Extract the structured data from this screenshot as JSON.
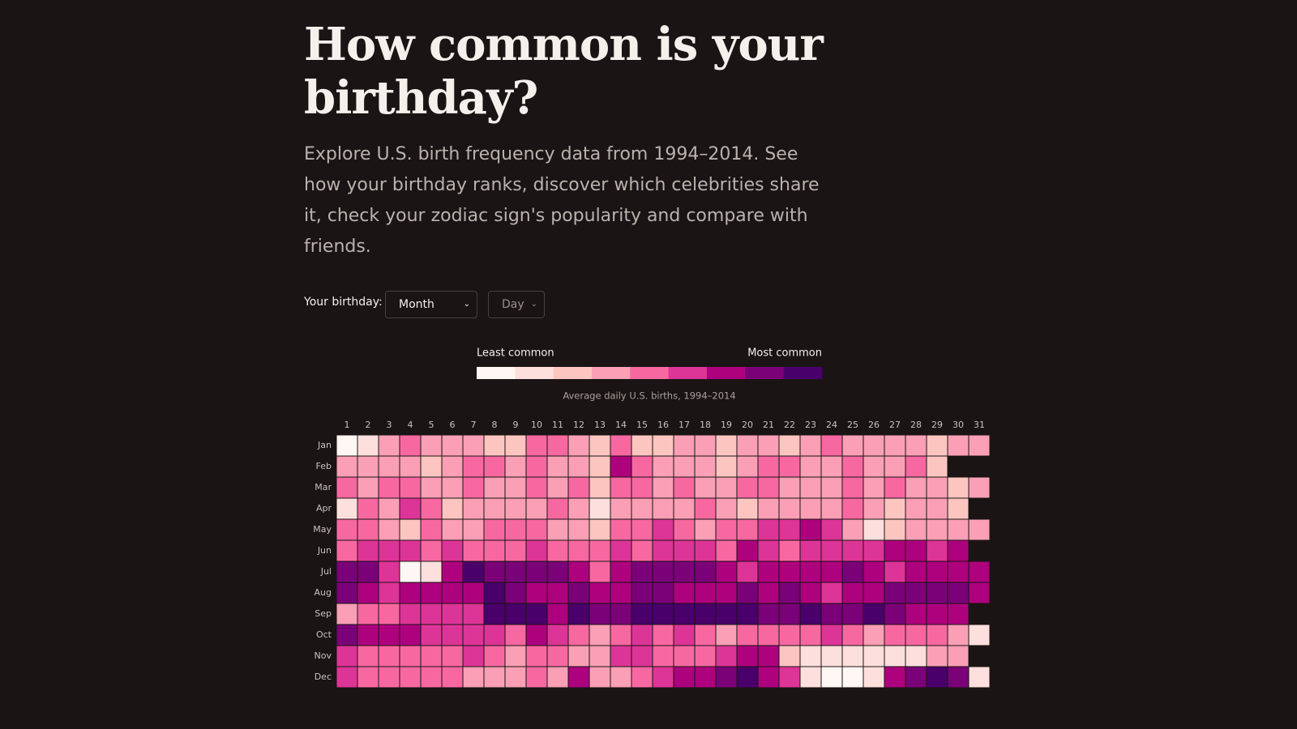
{
  "header": {
    "title": "How common is your birthday?",
    "description": "Explore U.S. birth frequency data from 1994–2014. See how your birthday ranks, discover which celebrities share it, check your zodiac sign's popularity and compare with friends."
  },
  "controls": {
    "label": "Your birthday:",
    "month": "Month",
    "day": "Day"
  },
  "legend": {
    "low": "Least common",
    "high": "Most common",
    "caption": "Average daily U.S. births, 1994–2014"
  },
  "chart_data": {
    "type": "heatmap",
    "x": [
      "1",
      "2",
      "3",
      "4",
      "5",
      "6",
      "7",
      "8",
      "9",
      "10",
      "11",
      "12",
      "13",
      "14",
      "15",
      "16",
      "17",
      "18",
      "19",
      "20",
      "21",
      "22",
      "23",
      "24",
      "25",
      "26",
      "27",
      "28",
      "29",
      "30",
      "31"
    ],
    "colors": [
      "#fff7f3",
      "#fde0dd",
      "#fcc5c0",
      "#fa9fb5",
      "#f768a1",
      "#dd3497",
      "#ae017e",
      "#7a0177",
      "#49006a"
    ],
    "series": [
      {
        "name": "Jan",
        "values": [
          0,
          1,
          3,
          4,
          3,
          3,
          3,
          2,
          2,
          4,
          4,
          3,
          2,
          4,
          2,
          2,
          3,
          3,
          2,
          3,
          3,
          2,
          3,
          4,
          3,
          3,
          3,
          3,
          2,
          3,
          3
        ]
      },
      {
        "name": "Feb",
        "values": [
          3,
          3,
          3,
          3,
          2,
          3,
          4,
          4,
          3,
          4,
          3,
          3,
          2,
          6,
          4,
          3,
          3,
          3,
          2,
          3,
          4,
          4,
          3,
          3,
          4,
          3,
          3,
          4,
          2,
          null,
          null
        ]
      },
      {
        "name": "Mar",
        "values": [
          4,
          3,
          4,
          4,
          3,
          3,
          4,
          3,
          3,
          4,
          3,
          4,
          2,
          4,
          4,
          3,
          4,
          3,
          3,
          4,
          4,
          3,
          3,
          3,
          4,
          3,
          4,
          3,
          3,
          2,
          3
        ]
      },
      {
        "name": "Apr",
        "values": [
          1,
          4,
          3,
          5,
          4,
          2,
          3,
          3,
          3,
          3,
          4,
          3,
          1,
          3,
          3,
          3,
          3,
          4,
          3,
          2,
          3,
          3,
          3,
          3,
          4,
          3,
          2,
          3,
          3,
          2,
          null
        ]
      },
      {
        "name": "May",
        "values": [
          4,
          4,
          3,
          2,
          4,
          3,
          3,
          4,
          4,
          4,
          3,
          3,
          2,
          4,
          4,
          5,
          4,
          3,
          4,
          4,
          5,
          5,
          6,
          5,
          3,
          1,
          2,
          3,
          3,
          3,
          3
        ]
      },
      {
        "name": "Jun",
        "values": [
          4,
          5,
          5,
          5,
          4,
          5,
          4,
          4,
          4,
          5,
          4,
          4,
          4,
          5,
          4,
          5,
          5,
          5,
          4,
          6,
          5,
          4,
          5,
          5,
          5,
          5,
          6,
          6,
          5,
          6,
          null
        ]
      },
      {
        "name": "Jul",
        "values": [
          7,
          7,
          5,
          0,
          1,
          6,
          8,
          7,
          7,
          7,
          7,
          6,
          4,
          6,
          7,
          7,
          7,
          7,
          6,
          5,
          6,
          6,
          6,
          6,
          7,
          6,
          5,
          6,
          6,
          6,
          6
        ]
      },
      {
        "name": "Aug",
        "values": [
          7,
          6,
          5,
          6,
          6,
          6,
          6,
          8,
          7,
          6,
          6,
          7,
          6,
          6,
          7,
          7,
          6,
          6,
          6,
          7,
          6,
          7,
          6,
          5,
          6,
          6,
          7,
          7,
          7,
          7,
          6
        ]
      },
      {
        "name": "Sep",
        "values": [
          3,
          4,
          4,
          5,
          5,
          5,
          5,
          8,
          8,
          8,
          6,
          8,
          7,
          7,
          8,
          8,
          8,
          8,
          8,
          8,
          7,
          7,
          8,
          7,
          7,
          8,
          7,
          6,
          6,
          6,
          null
        ]
      },
      {
        "name": "Oct",
        "values": [
          7,
          6,
          6,
          6,
          5,
          5,
          5,
          5,
          4,
          6,
          5,
          4,
          3,
          4,
          5,
          4,
          5,
          4,
          3,
          4,
          4,
          4,
          4,
          5,
          4,
          3,
          4,
          4,
          4,
          3,
          1
        ]
      },
      {
        "name": "Nov",
        "values": [
          5,
          4,
          4,
          4,
          4,
          4,
          5,
          4,
          3,
          4,
          4,
          3,
          3,
          5,
          5,
          4,
          4,
          4,
          5,
          6,
          6,
          2,
          1,
          1,
          1,
          1,
          1,
          1,
          3,
          3,
          null
        ]
      },
      {
        "name": "Dec",
        "values": [
          5,
          4,
          4,
          4,
          4,
          4,
          3,
          3,
          3,
          4,
          3,
          6,
          3,
          3,
          4,
          5,
          6,
          6,
          7,
          8,
          6,
          5,
          1,
          0,
          0,
          1,
          6,
          7,
          8,
          7,
          1
        ]
      }
    ]
  }
}
